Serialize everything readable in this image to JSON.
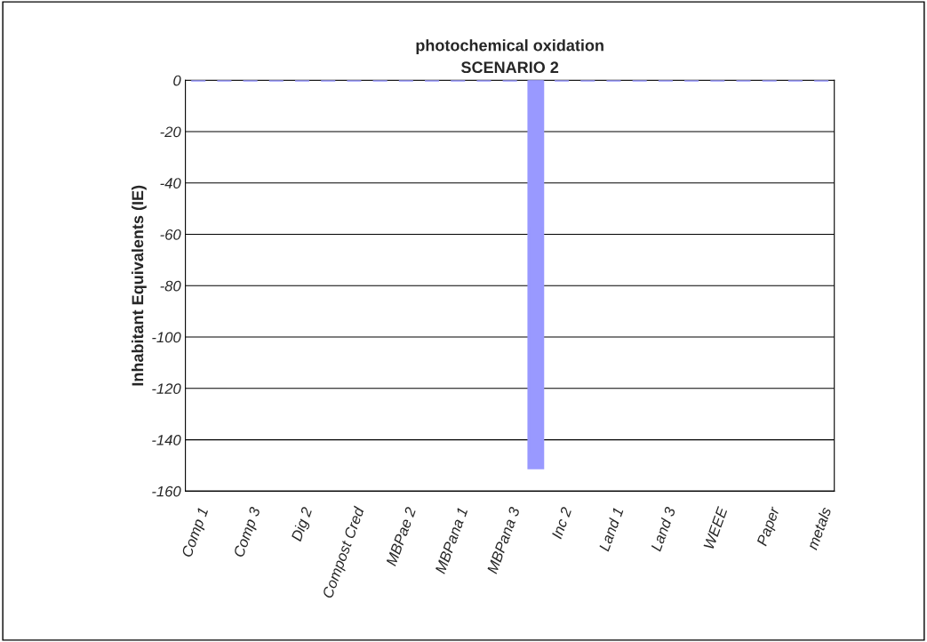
{
  "chart_data": {
    "type": "bar",
    "title": "photochemical oxidation\nSCENARIO 2",
    "ylabel": "Inhabitant Equivalents (IE)",
    "categories": [
      "Comp 1",
      null,
      "Comp 3",
      null,
      "Dig 2",
      null,
      "Compost Cred",
      null,
      "MBPae 2",
      null,
      "MBPana 1",
      null,
      "MBPana 3",
      null,
      "Inc 2",
      null,
      "Land 1",
      null,
      "Land 3",
      null,
      "WEEE",
      null,
      "Paper",
      null,
      "metals"
    ],
    "values": [
      0,
      0,
      0,
      0,
      0,
      0,
      0,
      0,
      0,
      0,
      0,
      0,
      0,
      -151,
      0,
      0,
      0,
      0,
      0,
      0,
      0,
      0,
      0,
      0,
      0
    ],
    "color": "#9999ff",
    "ylim": [
      -160,
      0
    ],
    "yticks": [
      -160,
      -140,
      -120,
      -100,
      -80,
      -60,
      -40,
      -20,
      0
    ],
    "grid": "y"
  }
}
